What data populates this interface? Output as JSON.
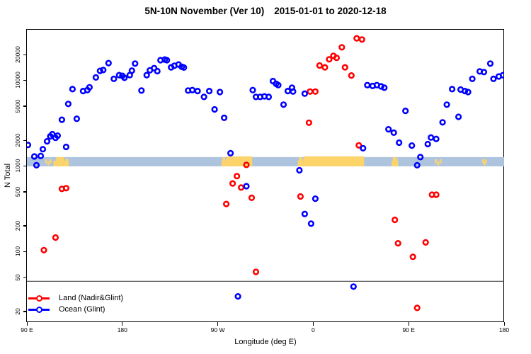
{
  "figure": {
    "title": "5N-10N November (Ver 10)",
    "date_range": "2015-01-01 to 2020-12-18"
  },
  "chart_data": {
    "type": "scatter",
    "title": "5N-10N November (Ver 10) 2015-01-01 to 2020-12-18",
    "xlabel": "Longitude (deg E)",
    "ylabel": "N Total",
    "x_axis": {
      "min": 90,
      "max": 540,
      "note": "longitude increases eastward, wrapping 90E-180-90W-0-90E-180",
      "ticks": [
        {
          "value": 90,
          "label": "90 E"
        },
        {
          "value": 180,
          "label": "180"
        },
        {
          "value": 270,
          "label": "90 W"
        },
        {
          "value": 360,
          "label": "0"
        },
        {
          "value": 450,
          "label": "90 E"
        },
        {
          "value": 540,
          "label": "180"
        }
      ]
    },
    "y_axis": {
      "scale": "log",
      "min": 15,
      "max": 39000,
      "ticks": [
        20,
        50,
        100,
        200,
        500,
        1000,
        2000,
        5000,
        10000,
        20000
      ]
    },
    "reference_line_y": 45,
    "reference_line_color": "#444444",
    "map_strip": {
      "n_top": 1270,
      "n_bottom": 990,
      "ocean_color": "#aec4de",
      "land_color": "#fcd46a",
      "land_segments": [
        {
          "from": 106.5,
          "to": 113,
          "coverage": "sparse"
        },
        {
          "from": 115,
          "to": 129.5,
          "coverage": "partial"
        },
        {
          "from": 273.5,
          "to": 278.5,
          "coverage": "partial"
        },
        {
          "from": 278.5,
          "to": 302.5,
          "coverage": "full"
        },
        {
          "from": 345.5,
          "to": 351,
          "coverage": "partial"
        },
        {
          "from": 351,
          "to": 408,
          "coverage": "full"
        },
        {
          "from": 434,
          "to": 440,
          "coverage": "partial"
        },
        {
          "from": 474,
          "to": 481,
          "coverage": "sparse"
        },
        {
          "from": 519,
          "to": 523,
          "coverage": "sparse"
        }
      ]
    },
    "legend_position": "bottom-left",
    "series": [
      {
        "name": "Land (Nadir&Glint)",
        "color": "#ff0000",
        "points": [
          [
            106,
            104
          ],
          [
            117,
            146
          ],
          [
            123,
            540
          ],
          [
            127,
            550
          ],
          [
            278,
            360
          ],
          [
            284,
            625
          ],
          [
            288,
            760
          ],
          [
            292,
            560
          ],
          [
            297,
            1030
          ],
          [
            302,
            425
          ],
          [
            306,
            58
          ],
          [
            348,
            440
          ],
          [
            356,
            3200
          ],
          [
            357,
            7400
          ],
          [
            362,
            7400
          ],
          [
            366,
            14900
          ],
          [
            371,
            14200
          ],
          [
            375,
            17600
          ],
          [
            379,
            19300
          ],
          [
            382,
            18300
          ],
          [
            387,
            24300
          ],
          [
            390,
            14200
          ],
          [
            396,
            11400
          ],
          [
            401,
            31000
          ],
          [
            403,
            1740
          ],
          [
            406,
            30000
          ],
          [
            437,
            235
          ],
          [
            440,
            125
          ],
          [
            454,
            87
          ],
          [
            458,
            22
          ],
          [
            466,
            128
          ],
          [
            472,
            462
          ],
          [
            476,
            462
          ]
        ]
      },
      {
        "name": "Ocean (Glint)",
        "color": "#0000ff",
        "points": [
          [
            91,
            1760
          ],
          [
            97,
            1290
          ],
          [
            99,
            1020
          ],
          [
            103,
            1310
          ],
          [
            105,
            1570
          ],
          [
            109,
            1940
          ],
          [
            112,
            2220
          ],
          [
            114,
            2350
          ],
          [
            117,
            2130
          ],
          [
            119,
            2260
          ],
          [
            123,
            3470
          ],
          [
            127,
            1670
          ],
          [
            129,
            5300
          ],
          [
            133,
            7900
          ],
          [
            137,
            3560
          ],
          [
            143,
            7500
          ],
          [
            147,
            7700
          ],
          [
            149,
            8300
          ],
          [
            155,
            10800
          ],
          [
            159,
            12900
          ],
          [
            162,
            13200
          ],
          [
            167,
            15900
          ],
          [
            172,
            10400
          ],
          [
            177,
            11500
          ],
          [
            180,
            11300
          ],
          [
            182,
            10700
          ],
          [
            187,
            11500
          ],
          [
            189,
            13000
          ],
          [
            192,
            15700
          ],
          [
            198,
            7600
          ],
          [
            203,
            11500
          ],
          [
            206,
            13100
          ],
          [
            210,
            13900
          ],
          [
            213,
            12800
          ],
          [
            216,
            17200
          ],
          [
            220,
            17500
          ],
          [
            222,
            17200
          ],
          [
            226,
            14200
          ],
          [
            229,
            14800
          ],
          [
            233,
            15300
          ],
          [
            236,
            14400
          ],
          [
            238,
            14100
          ],
          [
            242,
            7600
          ],
          [
            246,
            7700
          ],
          [
            251,
            7500
          ],
          [
            257,
            6400
          ],
          [
            262,
            7500
          ],
          [
            267,
            4580
          ],
          [
            272,
            7300
          ],
          [
            276,
            3650
          ],
          [
            282,
            1410
          ],
          [
            289,
            30
          ],
          [
            297,
            580
          ],
          [
            303,
            7700
          ],
          [
            306,
            6400
          ],
          [
            310,
            6400
          ],
          [
            314,
            6500
          ],
          [
            318,
            6400
          ],
          [
            322,
            9800
          ],
          [
            325,
            9100
          ],
          [
            327,
            8800
          ],
          [
            332,
            5200
          ],
          [
            336,
            7500
          ],
          [
            340,
            8200
          ],
          [
            341,
            7400
          ],
          [
            347,
            890
          ],
          [
            352,
            7000
          ],
          [
            352,
            275
          ],
          [
            358,
            212
          ],
          [
            362,
            415
          ],
          [
            398,
            39
          ],
          [
            407,
            1610
          ],
          [
            411,
            8800
          ],
          [
            416,
            8600
          ],
          [
            420,
            8800
          ],
          [
            424,
            8500
          ],
          [
            427,
            8200
          ],
          [
            431,
            2680
          ],
          [
            436,
            2450
          ],
          [
            441,
            1870
          ],
          [
            447,
            4400
          ],
          [
            453,
            1730
          ],
          [
            458,
            1020
          ],
          [
            461,
            1270
          ],
          [
            468,
            1800
          ],
          [
            471,
            2150
          ],
          [
            476,
            2070
          ],
          [
            482,
            3230
          ],
          [
            486,
            5200
          ],
          [
            491,
            7900
          ],
          [
            497,
            3750
          ],
          [
            499,
            7800
          ],
          [
            503,
            7500
          ],
          [
            506,
            7300
          ],
          [
            510,
            10400
          ],
          [
            517,
            12700
          ],
          [
            521,
            12500
          ],
          [
            527,
            15700
          ],
          [
            530,
            10400
          ],
          [
            535,
            11100
          ],
          [
            539,
            11500
          ]
        ]
      }
    ]
  }
}
